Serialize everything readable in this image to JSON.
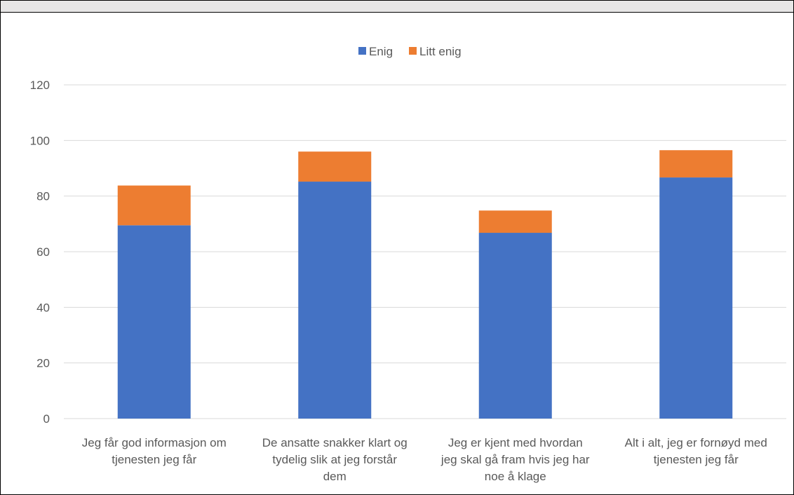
{
  "chart_data": {
    "type": "bar",
    "stacked": true,
    "categories": [
      [
        "Jeg får god informasjon om",
        "tjenesten jeg får"
      ],
      [
        "De ansatte snakker klart og",
        "tydelig slik at jeg forstår",
        "dem"
      ],
      [
        "Jeg er kjent med hvordan",
        "jeg skal gå fram hvis jeg har",
        "noe å klage"
      ],
      [
        "Alt i alt, jeg er fornøyd med",
        "tjenesten jeg får"
      ]
    ],
    "series": [
      {
        "name": "Enig",
        "color": "#4472c4",
        "values": [
          69.5,
          85.2,
          66.8,
          86.7
        ]
      },
      {
        "name": "Litt enig",
        "color": "#ed7d31",
        "values": [
          14.3,
          10.8,
          8.0,
          9.8
        ]
      }
    ],
    "y_ticks": [
      "0",
      "20",
      "40",
      "60",
      "80",
      "100",
      "120"
    ],
    "ylim": [
      0,
      120
    ],
    "grid": true,
    "legend_position": "top-center"
  }
}
